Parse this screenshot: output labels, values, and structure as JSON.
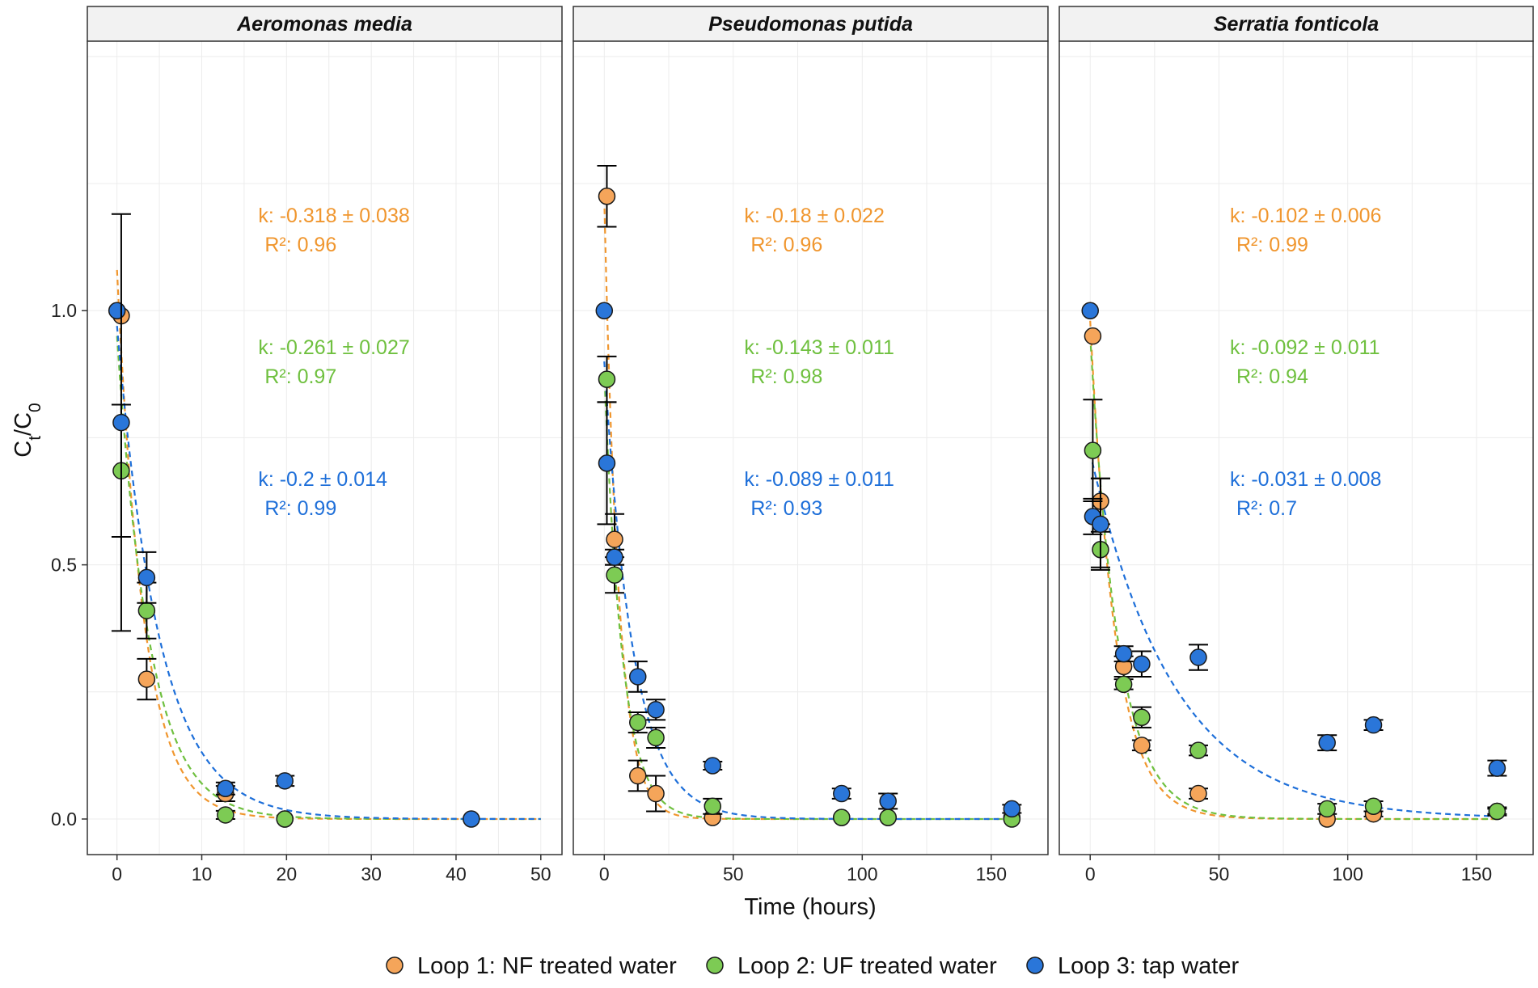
{
  "chart_data": {
    "type": "scatter",
    "y_axis_label": "Ct/C0",
    "y_axis_main": "C",
    "y_axis_sub1": "t",
    "y_axis_slash": "/",
    "y_axis_sub2": "0",
    "x_axis_label": "Time (hours)",
    "ylim": [
      -0.07,
      1.53
    ],
    "y_ticks": [
      0.0,
      0.5,
      1.0
    ],
    "y_tick_labels": [
      "0.0",
      "0.5",
      "1.0"
    ],
    "grid": true,
    "legend_position": "bottom",
    "series_colors": {
      "nf": "#F5A55A",
      "uf": "#7DCB54",
      "tap": "#2A76D9"
    },
    "line_colors": {
      "nf": "#F0962E",
      "uf": "#6FC03F",
      "tap": "#1E6FD9"
    },
    "legend": [
      {
        "key": "nf",
        "label": "Loop 1: NF treated water"
      },
      {
        "key": "uf",
        "label": "Loop 2: UF treated water"
      },
      {
        "key": "tap",
        "label": "Loop 3: tap water"
      }
    ],
    "panels": [
      {
        "title": "Aeromonas media",
        "xlim": [
          -3.5,
          52.5
        ],
        "x_ticks": [
          0,
          10,
          20,
          30,
          40,
          50
        ],
        "x_tick_labels": [
          "0",
          "10",
          "20",
          "30",
          "40",
          "50"
        ],
        "fit_range": [
          0,
          50
        ],
        "series": [
          {
            "key": "nf",
            "k": -0.318,
            "fit_c0": 1.08,
            "annotation_k": "k: -0.318 ± 0.038",
            "annotation_r2": "R²: 0.96",
            "points": [
              {
                "x": 0.5,
                "y": 0.99,
                "err": null
              },
              {
                "x": 3.5,
                "y": 0.275,
                "err": 0.04
              },
              {
                "x": 12.8,
                "y": 0.05,
                "err": 0.015
              },
              {
                "x": 19.8,
                "y": 0.0,
                "err": null
              }
            ]
          },
          {
            "key": "uf",
            "k": -0.261,
            "fit_c0": 0.95,
            "annotation_k": "k: -0.261 ± 0.027",
            "annotation_r2": "R²: 0.97",
            "points": [
              {
                "x": 0.5,
                "y": 0.685,
                "err": 0.13
              },
              {
                "x": 3.5,
                "y": 0.41,
                "err": 0.055
              },
              {
                "x": 12.8,
                "y": 0.008,
                "err": 0.008
              },
              {
                "x": 19.8,
                "y": 0.0,
                "err": null
              }
            ]
          },
          {
            "key": "tap",
            "k": -0.2,
            "fit_c0": 0.97,
            "annotation_k": "k: -0.2 ± 0.014",
            "annotation_r2": "R²: 0.99",
            "points": [
              {
                "x": 0.0,
                "y": 1.0,
                "err": null
              },
              {
                "x": 0.5,
                "y": 0.78,
                "err": 0.41
              },
              {
                "x": 3.5,
                "y": 0.475,
                "err": 0.05
              },
              {
                "x": 12.8,
                "y": 0.06,
                "err": 0.012
              },
              {
                "x": 19.8,
                "y": 0.075,
                "err": 0.01
              },
              {
                "x": 41.8,
                "y": 0.0,
                "err": null
              }
            ]
          }
        ]
      },
      {
        "title": "Pseudomonas putida",
        "xlim": [
          -12,
          172
        ],
        "x_ticks": [
          0,
          50,
          100,
          150
        ],
        "x_tick_labels": [
          "0",
          "50",
          "100",
          "150"
        ],
        "fit_range": [
          0,
          158
        ],
        "series": [
          {
            "key": "nf",
            "k": -0.18,
            "fit_c0": 1.22,
            "annotation_k": "k: -0.18 ± 0.022",
            "annotation_r2": "R²: 0.96",
            "points": [
              {
                "x": 1.0,
                "y": 1.225,
                "err": 0.06
              },
              {
                "x": 4.0,
                "y": 0.55,
                "err": 0.05
              },
              {
                "x": 13.0,
                "y": 0.085,
                "err": 0.03
              },
              {
                "x": 20.0,
                "y": 0.05,
                "err": 0.035
              },
              {
                "x": 42.0,
                "y": 0.003,
                "err": null
              },
              {
                "x": 92.0,
                "y": 0.003,
                "err": null
              },
              {
                "x": 110.0,
                "y": 0.003,
                "err": null
              },
              {
                "x": 158.0,
                "y": 0.003,
                "err": null
              }
            ]
          },
          {
            "key": "uf",
            "k": -0.143,
            "fit_c0": 0.88,
            "annotation_k": "k: -0.143 ± 0.011",
            "annotation_r2": "R²: 0.98",
            "points": [
              {
                "x": 1.0,
                "y": 0.865,
                "err": 0.045
              },
              {
                "x": 4.0,
                "y": 0.48,
                "err": 0.035
              },
              {
                "x": 13.0,
                "y": 0.19,
                "err": 0.02
              },
              {
                "x": 20.0,
                "y": 0.16,
                "err": 0.02
              },
              {
                "x": 42.0,
                "y": 0.025,
                "err": 0.015
              },
              {
                "x": 92.0,
                "y": 0.003,
                "err": null
              },
              {
                "x": 110.0,
                "y": 0.003,
                "err": null
              },
              {
                "x": 158.0,
                "y": 0.0,
                "err": null
              }
            ]
          },
          {
            "key": "tap",
            "k": -0.089,
            "fit_c0": 0.9,
            "annotation_k": "k: -0.089 ± 0.011",
            "annotation_r2": "R²: 0.93",
            "points": [
              {
                "x": 0.0,
                "y": 1.0,
                "err": null
              },
              {
                "x": 1.0,
                "y": 0.7,
                "err": 0.12
              },
              {
                "x": 4.0,
                "y": 0.515,
                "err": 0.015
              },
              {
                "x": 13.0,
                "y": 0.28,
                "err": 0.03
              },
              {
                "x": 20.0,
                "y": 0.215,
                "err": 0.02
              },
              {
                "x": 42.0,
                "y": 0.105,
                "err": 0.008
              },
              {
                "x": 92.0,
                "y": 0.05,
                "err": 0.01
              },
              {
                "x": 110.0,
                "y": 0.035,
                "err": 0.015
              },
              {
                "x": 158.0,
                "y": 0.02,
                "err": 0.008
              }
            ]
          }
        ]
      },
      {
        "title": "Serratia fonticola",
        "xlim": [
          -12,
          172
        ],
        "x_ticks": [
          0,
          50,
          100,
          150
        ],
        "x_tick_labels": [
          "0",
          "50",
          "100",
          "150"
        ],
        "fit_range": [
          0,
          158
        ],
        "series": [
          {
            "key": "nf",
            "k": -0.102,
            "fit_c0": 0.98,
            "annotation_k": "k: -0.102 ± 0.006",
            "annotation_r2": "R²: 0.99",
            "points": [
              {
                "x": 1.0,
                "y": 0.95,
                "err": null
              },
              {
                "x": 4.0,
                "y": 0.625,
                "err": 0.045
              },
              {
                "x": 13.0,
                "y": 0.3,
                "err": 0.02
              },
              {
                "x": 20.0,
                "y": 0.145,
                "err": 0.01
              },
              {
                "x": 42.0,
                "y": 0.05,
                "err": 0.01
              },
              {
                "x": 92.0,
                "y": 0.0,
                "err": null
              },
              {
                "x": 110.0,
                "y": 0.01,
                "err": 0.005
              },
              {
                "x": 158.0,
                "y": 0.015,
                "err": 0.005
              }
            ]
          },
          {
            "key": "uf",
            "k": -0.092,
            "fit_c0": 0.95,
            "annotation_k": "k: -0.092 ± 0.011",
            "annotation_r2": "R²: 0.94",
            "points": [
              {
                "x": 1.0,
                "y": 0.725,
                "err": 0.1
              },
              {
                "x": 4.0,
                "y": 0.53,
                "err": 0.035
              },
              {
                "x": 13.0,
                "y": 0.265,
                "err": 0.01
              },
              {
                "x": 20.0,
                "y": 0.2,
                "err": 0.02
              },
              {
                "x": 42.0,
                "y": 0.135,
                "err": 0.01
              },
              {
                "x": 92.0,
                "y": 0.02,
                "err": 0.01
              },
              {
                "x": 110.0,
                "y": 0.025,
                "err": 0.01
              },
              {
                "x": 158.0,
                "y": 0.015,
                "err": 0.008
              }
            ]
          },
          {
            "key": "tap",
            "k": -0.031,
            "fit_c0": 0.72,
            "annotation_k": "k: -0.031 ± 0.008",
            "annotation_r2": "R²: 0.7",
            "points": [
              {
                "x": 0.0,
                "y": 1.0,
                "err": null
              },
              {
                "x": 1.0,
                "y": 0.595,
                "err": 0.035
              },
              {
                "x": 4.0,
                "y": 0.58,
                "err": 0.09
              },
              {
                "x": 13.0,
                "y": 0.325,
                "err": 0.015
              },
              {
                "x": 20.0,
                "y": 0.305,
                "err": 0.025
              },
              {
                "x": 42.0,
                "y": 0.318,
                "err": 0.025
              },
              {
                "x": 92.0,
                "y": 0.15,
                "err": 0.015
              },
              {
                "x": 110.0,
                "y": 0.185,
                "err": 0.01
              },
              {
                "x": 158.0,
                "y": 0.1,
                "err": 0.015
              }
            ]
          }
        ]
      }
    ]
  }
}
